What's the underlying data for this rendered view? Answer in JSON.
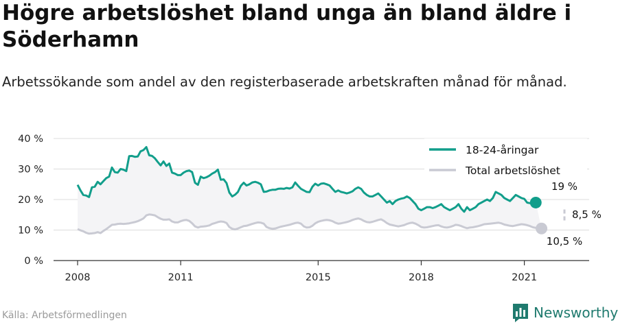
{
  "title": "Högre arbetslöshet bland unga än bland äldre i Söderhamn",
  "subtitle": "Arbetssökande som andel av den registerbaserade arbetskraften månad för månad.",
  "source": "Källa: Arbetsförmedlingen",
  "brand": "Newsworthy",
  "colors": {
    "youth": "#129e8b",
    "total": "#c9cad3",
    "fill": "#f4f4f6",
    "brand": "#1f7a6e"
  },
  "chart_data": {
    "type": "line",
    "ylim": [
      0,
      40
    ],
    "yticks": [
      0,
      10,
      20,
      30,
      40
    ],
    "ytick_labels": [
      "0 %",
      "10 %",
      "20 %",
      "30 %",
      "40 %"
    ],
    "xlim": [
      2008.0,
      2022.167
    ],
    "xticks": [
      2008,
      2011,
      2015,
      2018,
      2021
    ],
    "xtick_labels": [
      "2008",
      "2011",
      "2015",
      "2018",
      "2021"
    ],
    "legend_position": "top-right",
    "series": [
      {
        "name": "18-24-åringar",
        "start": 2008.0,
        "step": 0.08333,
        "end_label": "19 %",
        "values": [
          24.8,
          23.0,
          21.5,
          21.3,
          20.8,
          24.0,
          24.2,
          25.8,
          25.0,
          26.0,
          27.0,
          27.5,
          30.5,
          29.0,
          28.8,
          30.0,
          29.8,
          29.3,
          34.2,
          34.3,
          34.0,
          34.1,
          35.8,
          36.2,
          37.2,
          34.5,
          34.3,
          33.5,
          32.3,
          31.2,
          32.5,
          31.0,
          31.8,
          28.8,
          28.5,
          28.0,
          28.0,
          28.8,
          29.3,
          29.5,
          29.0,
          25.5,
          24.8,
          27.5,
          27.0,
          27.3,
          27.8,
          28.5,
          29.0,
          29.8,
          26.5,
          26.6,
          25.4,
          22.3,
          21.0,
          21.6,
          22.5,
          24.5,
          25.5,
          24.6,
          25.0,
          25.6,
          25.8,
          25.5,
          25.0,
          22.5,
          22.6,
          23.0,
          23.2,
          23.2,
          23.5,
          23.6,
          23.5,
          23.8,
          23.6,
          24.0,
          25.6,
          24.5,
          23.5,
          23.0,
          22.5,
          22.4,
          24.2,
          25.2,
          24.6,
          25.2,
          25.3,
          25.0,
          24.6,
          23.5,
          22.5,
          23.0,
          22.5,
          22.3,
          22.0,
          22.3,
          22.7,
          23.5,
          24.0,
          23.5,
          22.3,
          21.5,
          21.0,
          21.0,
          21.5,
          22.0,
          21.0,
          20.0,
          19.0,
          19.5,
          18.5,
          19.5,
          20.0,
          20.3,
          20.5,
          21.0,
          20.5,
          19.5,
          18.5,
          17.0,
          16.5,
          17.0,
          17.5,
          17.5,
          17.2,
          17.5,
          18.0,
          18.5,
          17.5,
          17.0,
          16.5,
          17.0,
          17.5,
          18.5,
          17.0,
          16.0,
          17.5,
          16.5,
          17.0,
          17.5,
          18.5,
          19.0,
          19.5,
          20.0,
          19.5,
          20.5,
          22.5,
          22.0,
          21.5,
          20.5,
          20.0,
          19.5,
          20.5,
          21.5,
          21.0,
          20.5,
          20.2,
          19.0,
          18.8,
          19.0,
          19.0
        ]
      },
      {
        "name": "Total arbetslöshet",
        "start": 2008.0,
        "step": 0.08333,
        "end_label": "10,5 %",
        "values": [
          10.3,
          9.9,
          9.6,
          9.1,
          8.8,
          8.9,
          9.0,
          9.3,
          9.0,
          9.7,
          10.3,
          11.0,
          11.7,
          11.8,
          12.0,
          12.1,
          12.0,
          12.1,
          12.2,
          12.4,
          12.6,
          12.9,
          13.3,
          13.8,
          14.8,
          15.1,
          15.0,
          14.8,
          14.2,
          13.7,
          13.4,
          13.4,
          13.5,
          12.8,
          12.5,
          12.5,
          12.9,
          13.2,
          13.3,
          13.0,
          12.2,
          11.2,
          10.8,
          11.1,
          11.2,
          11.3,
          11.5,
          12.0,
          12.3,
          12.6,
          12.8,
          12.7,
          12.3,
          11.0,
          10.4,
          10.2,
          10.5,
          10.9,
          11.3,
          11.4,
          11.7,
          12.0,
          12.3,
          12.5,
          12.4,
          12.1,
          11.0,
          10.6,
          10.4,
          10.5,
          10.8,
          11.1,
          11.3,
          11.5,
          11.7,
          12.0,
          12.3,
          12.4,
          12.1,
          11.2,
          10.8,
          10.9,
          11.4,
          12.2,
          12.7,
          13.0,
          13.2,
          13.3,
          13.2,
          12.9,
          12.4,
          12.1,
          12.2,
          12.4,
          12.6,
          12.9,
          13.3,
          13.6,
          13.8,
          13.5,
          13.0,
          12.6,
          12.5,
          12.7,
          13.0,
          13.3,
          13.5,
          13.0,
          12.3,
          11.8,
          11.6,
          11.4,
          11.2,
          11.4,
          11.6,
          12.0,
          12.3,
          12.4,
          12.1,
          11.6,
          11.0,
          10.8,
          10.9,
          11.1,
          11.3,
          11.5,
          11.6,
          11.2,
          10.9,
          10.8,
          11.0,
          11.3,
          11.7,
          11.6,
          11.3,
          10.9,
          10.6,
          10.8,
          10.9,
          11.1,
          11.3,
          11.6,
          11.9,
          12.0,
          12.1,
          12.2,
          12.3,
          12.4,
          12.2,
          11.8,
          11.6,
          11.4,
          11.3,
          11.5,
          11.7,
          11.9,
          11.8,
          11.6,
          11.3,
          10.9,
          10.7,
          10.6,
          10.5
        ]
      }
    ],
    "difference_label": "8,5 %"
  }
}
